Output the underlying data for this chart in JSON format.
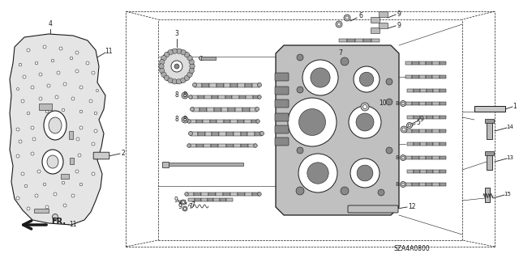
{
  "bg_color": "#ffffff",
  "diagram_code": "SZA4A0800",
  "fr_label": "FR.",
  "fig_width": 6.4,
  "fig_height": 3.19,
  "dpi": 100,
  "line_color": "#1a1a1a",
  "fill_light": "#e0e0e0",
  "fill_mid": "#c8c8c8",
  "fill_dark": "#a0a0a0",
  "plate_color": "#d8d8d8",
  "body_color": "#c0c0c0"
}
